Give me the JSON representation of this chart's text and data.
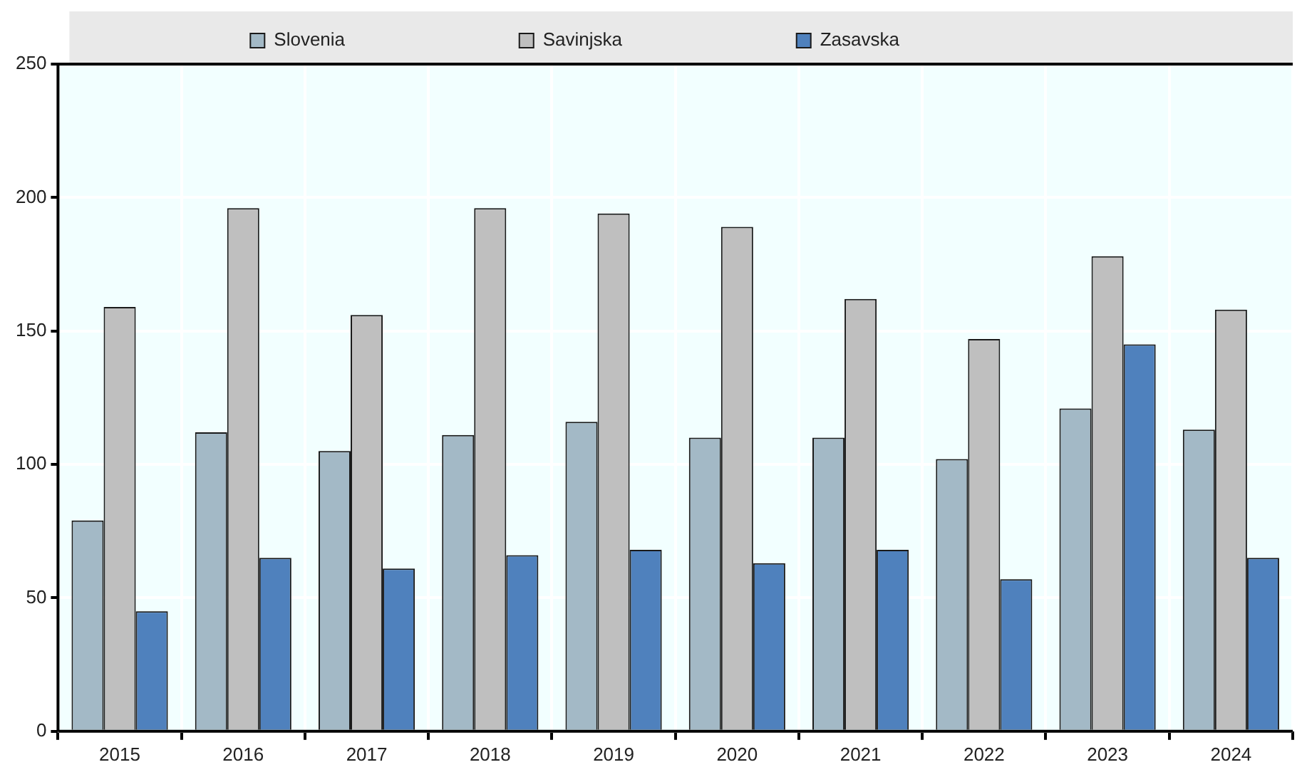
{
  "chart_data": {
    "type": "bar",
    "categories": [
      "2015",
      "2016",
      "2017",
      "2018",
      "2019",
      "2020",
      "2021",
      "2022",
      "2023",
      "2024"
    ],
    "series": [
      {
        "name": "Slovenia",
        "color": "#a3b9c6",
        "values": [
          79,
          112,
          105,
          111,
          116,
          110,
          110,
          102,
          121,
          113
        ]
      },
      {
        "name": "Savinjska",
        "color": "#bfbfbf",
        "values": [
          159,
          196,
          156,
          196,
          194,
          189,
          162,
          147,
          178,
          158
        ]
      },
      {
        "name": "Zasavska",
        "color": "#4f81bd",
        "values": [
          45,
          65,
          61,
          66,
          68,
          63,
          68,
          57,
          145,
          65
        ]
      }
    ],
    "ylim": [
      0,
      250
    ],
    "yticks": [
      0,
      50,
      100,
      150,
      200,
      250
    ],
    "grid": true,
    "legend": "top"
  }
}
